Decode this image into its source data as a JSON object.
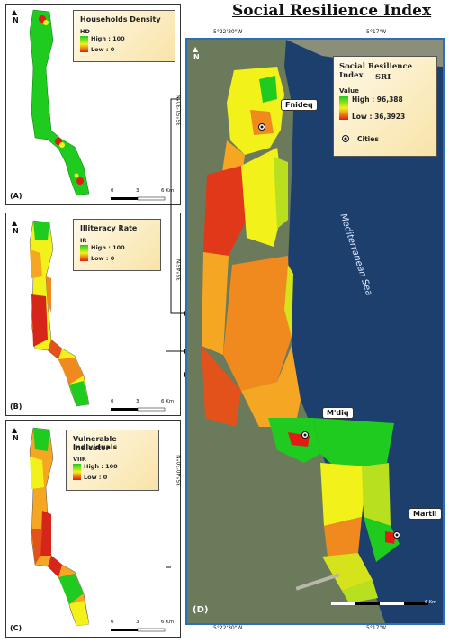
{
  "title": "Social Resilience Index",
  "panels": {
    "a": {
      "label": "(A)",
      "legend_title": "Households  Density",
      "legend_code": "HD",
      "high": "High : 100",
      "low": "Low : 0",
      "scale": [
        "0",
        "3",
        "6 Km"
      ]
    },
    "b": {
      "label": "(B)",
      "legend_title": "Illiteracy Rate",
      "legend_code": "IR",
      "high": "High : 100",
      "low": "Low : 0",
      "scale": [
        "0",
        "3",
        "6 Km"
      ]
    },
    "c": {
      "label": "(C)",
      "legend_title_1": "Vulnerable Individuals",
      "legend_title_2": "Indicator",
      "legend_code": "VIIR",
      "high": "High : 100",
      "low": "Low : 0",
      "scale": [
        "0",
        "3",
        "6 Km"
      ]
    },
    "d": {
      "label": "(D)",
      "legend_title_1": "Social Resilience Index",
      "legend_title_2": "SRI",
      "value_label": "Value",
      "high": "High : 96,388",
      "low": "Low : 36,3923",
      "cities_label": "Cities",
      "scale_end": "6 Km",
      "coords_top": [
        "5°22'30\"W",
        "5°17'W"
      ],
      "coords_bottom": [
        "5°22'30\"W",
        "5°17'W"
      ],
      "coords_left": [
        "35°51'30\"N",
        "35°46'N",
        "35°40'30\"N"
      ]
    }
  },
  "north_label": "N",
  "sea_label": "Mediterranean Sea",
  "cities": [
    "Fnideq",
    "M'diq",
    "Martil"
  ],
  "colors": {
    "high": "#1ecb1e",
    "mid": "#f2f21a",
    "low": "#e21b14",
    "sea": "#1c3f6e",
    "land": "#6b7a5a",
    "frame_border": "#2a6fb8"
  }
}
